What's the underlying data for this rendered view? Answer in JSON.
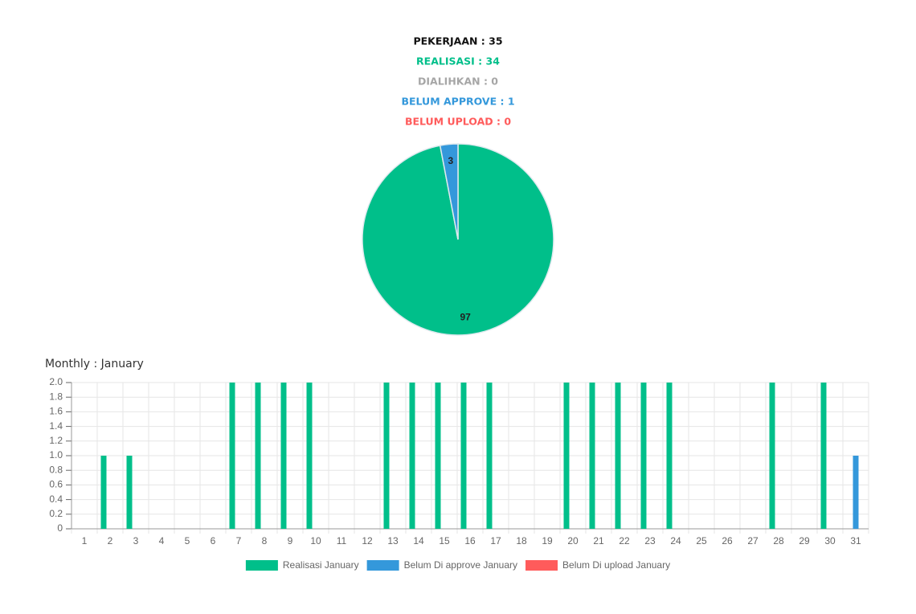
{
  "stats": [
    {
      "text": "PEKERJAAN : 35",
      "color": "#111111"
    },
    {
      "text": "REALISASI : 34",
      "color": "#00bf8a"
    },
    {
      "text": "DIALIHKAN : 0",
      "color": "#a6a6a6"
    },
    {
      "text": "BELUM APPROVE : 1",
      "color": "#3498db"
    },
    {
      "text": "BELUM UPLOAD : 0",
      "color": "#ff5b5b"
    }
  ],
  "chart_data": [
    {
      "type": "pie",
      "values": [
        97,
        3
      ],
      "colors": [
        "#00bf8a",
        "#3498db"
      ]
    },
    {
      "type": "bar",
      "title": "Monthly : January",
      "categories": [
        "1",
        "2",
        "3",
        "4",
        "5",
        "6",
        "7",
        "8",
        "9",
        "10",
        "11",
        "12",
        "13",
        "14",
        "15",
        "16",
        "17",
        "18",
        "19",
        "20",
        "21",
        "22",
        "23",
        "24",
        "25",
        "26",
        "27",
        "28",
        "29",
        "30",
        "31"
      ],
      "series": [
        {
          "name": "Realisasi January",
          "color": "#00bf8a",
          "values": [
            0,
            1,
            1,
            0,
            0,
            0,
            2,
            2,
            2,
            2,
            0,
            0,
            2,
            2,
            2,
            2,
            2,
            0,
            0,
            2,
            2,
            2,
            2,
            2,
            0,
            0,
            0,
            2,
            0,
            2,
            0
          ]
        },
        {
          "name": "Belum Di approve January",
          "color": "#3498db",
          "values": [
            0,
            0,
            0,
            0,
            0,
            0,
            0,
            0,
            0,
            0,
            0,
            0,
            0,
            0,
            0,
            0,
            0,
            0,
            0,
            0,
            0,
            0,
            0,
            0,
            0,
            0,
            0,
            0,
            0,
            0,
            1
          ]
        },
        {
          "name": "Belum Di upload January",
          "color": "#ff5b5b",
          "values": [
            0,
            0,
            0,
            0,
            0,
            0,
            0,
            0,
            0,
            0,
            0,
            0,
            0,
            0,
            0,
            0,
            0,
            0,
            0,
            0,
            0,
            0,
            0,
            0,
            0,
            0,
            0,
            0,
            0,
            0,
            0
          ]
        }
      ],
      "ylim": [
        0,
        2
      ],
      "yticks": [
        0,
        0.2,
        0.4,
        0.6,
        0.8,
        {
          "value": 1,
          "label": "1.0"
        },
        1.2,
        1.4,
        1.6,
        1.8,
        {
          "value": 2,
          "label": "2.0"
        }
      ],
      "grid": true
    }
  ]
}
